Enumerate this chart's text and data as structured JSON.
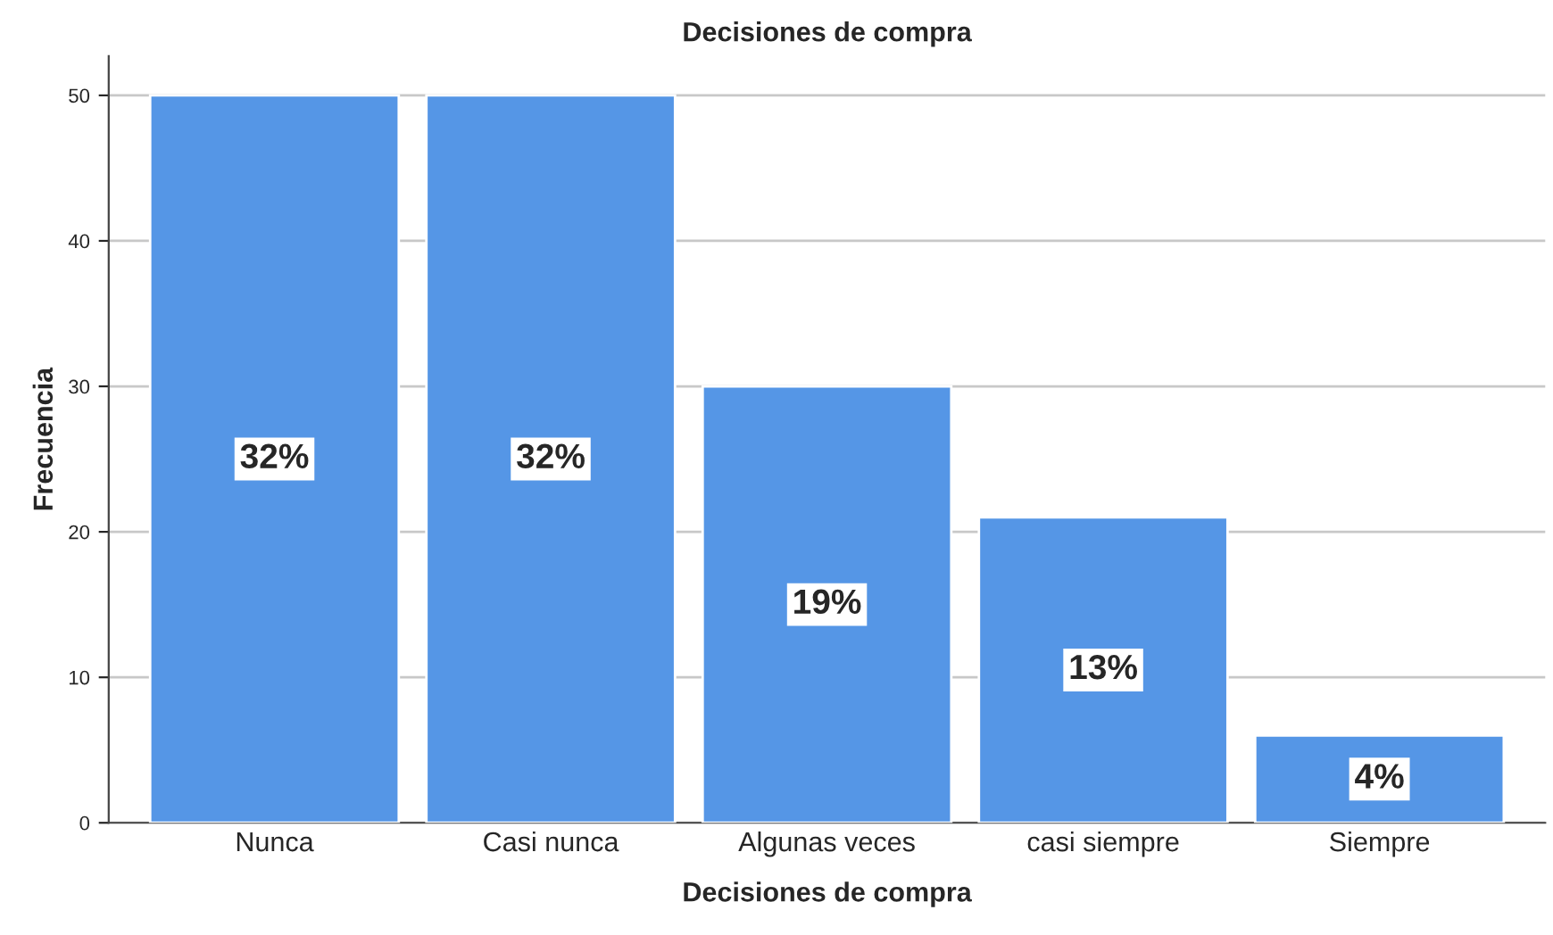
{
  "chart_data": {
    "type": "bar",
    "title": "Decisiones de compra",
    "xlabel": "Decisiones de compra",
    "ylabel": "Frecuencia",
    "categories": [
      "Nunca",
      "Casi nunca",
      "Algunas veces",
      "casi siempre",
      "Siempre"
    ],
    "values": [
      50,
      50,
      30,
      21,
      6
    ],
    "annotations": [
      "32%",
      "32%",
      "19%",
      "13%",
      "4%"
    ],
    "color": "#5596e6",
    "ylim": [
      0,
      52.7
    ],
    "yticks": [
      0,
      10,
      20,
      30,
      40,
      50
    ],
    "grid": "y"
  }
}
